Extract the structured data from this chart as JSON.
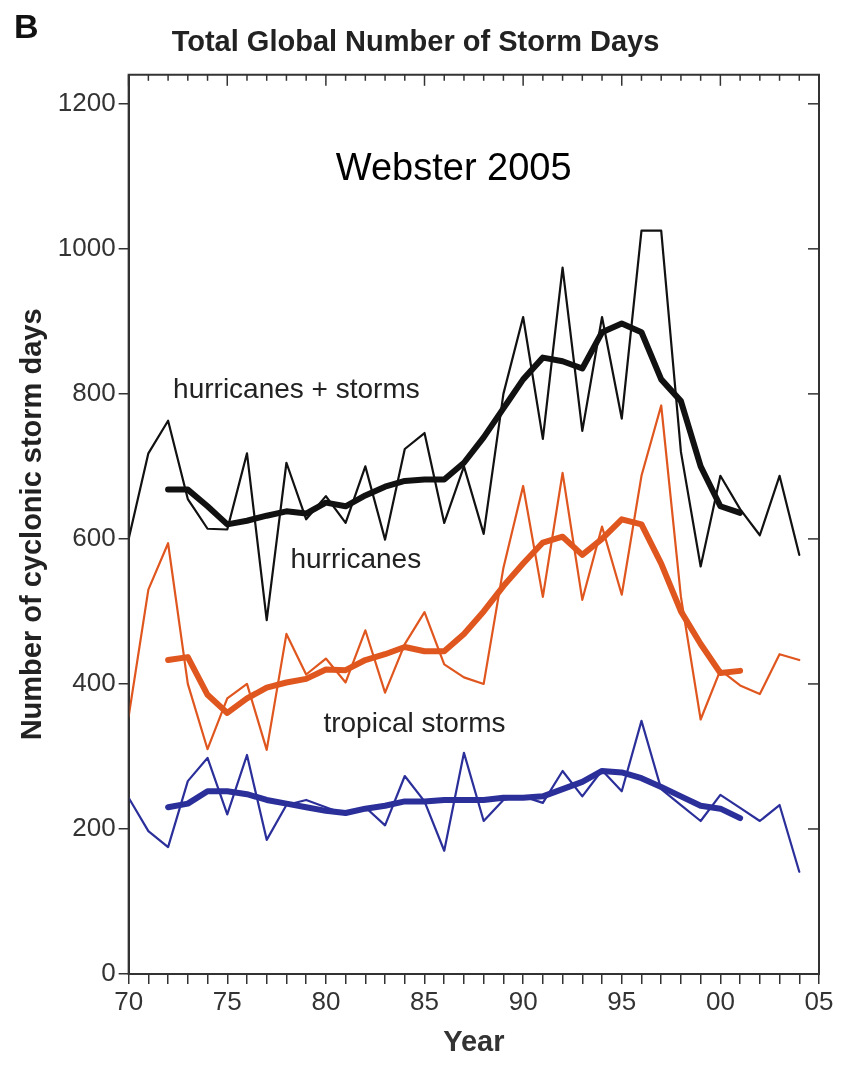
{
  "chart_data": {
    "type": "line",
    "title": "Total Global Number of Storm Days",
    "xlabel": "Year",
    "ylabel": "Number of cyclonic storm days",
    "annotations": [
      "B",
      "Webster 2005",
      "hurricanes + storms",
      "hurricanes",
      "tropical storms"
    ],
    "x": [
      1970,
      1971,
      1972,
      1973,
      1974,
      1975,
      1976,
      1977,
      1978,
      1979,
      1980,
      1981,
      1982,
      1983,
      1984,
      1985,
      1986,
      1987,
      1988,
      1989,
      1990,
      1991,
      1992,
      1993,
      1994,
      1995,
      1996,
      1997,
      1998,
      1999,
      2000,
      2001,
      2002,
      2003,
      2004
    ],
    "series": [
      {
        "color": "#111111",
        "values": [
          600,
          718,
          763,
          655,
          614,
          613,
          718,
          488,
          705,
          627,
          659,
          622,
          700,
          599,
          724,
          746,
          622,
          700,
          607,
          800,
          906,
          738,
          974,
          749,
          906,
          766,
          1025,
          1025,
          720,
          562,
          687,
          641,
          605,
          687,
          578
        ]
      },
      {
        "color": "#e0561f",
        "values": [
          355,
          530,
          594,
          400,
          310,
          380,
          400,
          309,
          469,
          413,
          435,
          402,
          474,
          388,
          455,
          499,
          427,
          409,
          400,
          560,
          673,
          520,
          691,
          516,
          617,
          523,
          687,
          784,
          520,
          351,
          419,
          398,
          386,
          441,
          433
        ]
      },
      {
        "color": "#2b2f9a",
        "values": [
          243,
          197,
          175,
          266,
          298,
          220,
          302,
          185,
          233,
          240,
          230,
          220,
          230,
          205,
          273,
          238,
          170,
          305,
          211,
          240,
          245,
          236,
          280,
          245,
          281,
          252,
          349,
          255,
          233,
          211,
          247,
          229,
          211,
          233,
          141
        ]
      },
      {
        "type": "line",
        "color": "#111111",
        "x": [
          1972,
          1973,
          1974,
          1975,
          1976,
          1977,
          1978,
          1979,
          1980,
          1981,
          1982,
          1983,
          1984,
          1985,
          1986,
          1987,
          1988,
          1989,
          1990,
          1991,
          1992,
          1993,
          1994,
          1995,
          1996,
          1997,
          1998,
          1999,
          2000,
          2001
        ],
        "values": [
          668,
          668,
          645,
          620,
          625,
          632,
          638,
          635,
          650,
          645,
          660,
          672,
          680,
          682,
          682,
          705,
          740,
          780,
          820,
          850,
          845,
          835,
          885,
          897,
          885,
          820,
          790,
          700,
          645,
          636
        ]
      },
      {
        "type": "line",
        "color": "#e0561f",
        "x": [
          1972,
          1973,
          1974,
          1975,
          1976,
          1977,
          1978,
          1979,
          1980,
          1981,
          1982,
          1983,
          1984,
          1985,
          1986,
          1987,
          1988,
          1989,
          1990,
          1991,
          1992,
          1993,
          1994,
          1995,
          1996,
          1997,
          1998,
          1999,
          2000,
          2001
        ],
        "values": [
          433,
          437,
          385,
          360,
          380,
          395,
          402,
          407,
          420,
          419,
          433,
          441,
          451,
          445,
          445,
          469,
          500,
          535,
          566,
          595,
          603,
          578,
          600,
          627,
          620,
          566,
          500,
          455,
          415,
          418
        ]
      },
      {
        "type": "line",
        "color": "#2b2f9a",
        "x": [
          1972,
          1973,
          1974,
          1975,
          1976,
          1977,
          1978,
          1979,
          1980,
          1981,
          1982,
          1983,
          1984,
          1985,
          1986,
          1987,
          1988,
          1989,
          1990,
          1991,
          1992,
          1993,
          1994,
          1995,
          1996,
          1997,
          1998,
          1999,
          2000,
          2001
        ],
        "values": [
          230,
          235,
          252,
          252,
          248,
          240,
          235,
          230,
          225,
          222,
          228,
          232,
          238,
          238,
          240,
          240,
          240,
          243,
          243,
          245,
          255,
          265,
          280,
          278,
          270,
          258,
          245,
          232,
          228,
          215
        ]
      }
    ],
    "xlim": [
      1970,
      2005
    ],
    "xticks": [
      {
        "value": 1970,
        "label": "70"
      },
      {
        "value": 1971,
        "label": null
      },
      {
        "value": 1972,
        "label": null
      },
      {
        "value": 1973,
        "label": null
      },
      {
        "value": 1974,
        "label": null
      },
      {
        "value": 1975,
        "label": "75"
      },
      {
        "value": 1976,
        "label": null
      },
      {
        "value": 1977,
        "label": null
      },
      {
        "value": 1978,
        "label": null
      },
      {
        "value": 1979,
        "label": null
      },
      {
        "value": 1980,
        "label": "80"
      },
      {
        "value": 1981,
        "label": null
      },
      {
        "value": 1982,
        "label": null
      },
      {
        "value": 1983,
        "label": null
      },
      {
        "value": 1984,
        "label": null
      },
      {
        "value": 1985,
        "label": "85"
      },
      {
        "value": 1986,
        "label": null
      },
      {
        "value": 1987,
        "label": null
      },
      {
        "value": 1988,
        "label": null
      },
      {
        "value": 1989,
        "label": null
      },
      {
        "value": 1990,
        "label": "90"
      },
      {
        "value": 1991,
        "label": null
      },
      {
        "value": 1992,
        "label": null
      },
      {
        "value": 1993,
        "label": null
      },
      {
        "value": 1994,
        "label": null
      },
      {
        "value": 1995,
        "label": "95"
      },
      {
        "value": 1996,
        "label": null
      },
      {
        "value": 1997,
        "label": null
      },
      {
        "value": 1998,
        "label": null
      },
      {
        "value": 1999,
        "label": null
      },
      {
        "value": 2000,
        "label": "00"
      },
      {
        "value": 2001,
        "label": null
      },
      {
        "value": 2002,
        "label": null
      },
      {
        "value": 2003,
        "label": null
      },
      {
        "value": 2004,
        "label": null
      },
      {
        "value": 2005,
        "label": "05"
      }
    ],
    "ylim": [
      0,
      1240
    ],
    "yticks": [
      0,
      200,
      400,
      600,
      800,
      1000,
      1200
    ],
    "grid": false,
    "legend": false,
    "marker": "none",
    "line_style": "solid"
  }
}
